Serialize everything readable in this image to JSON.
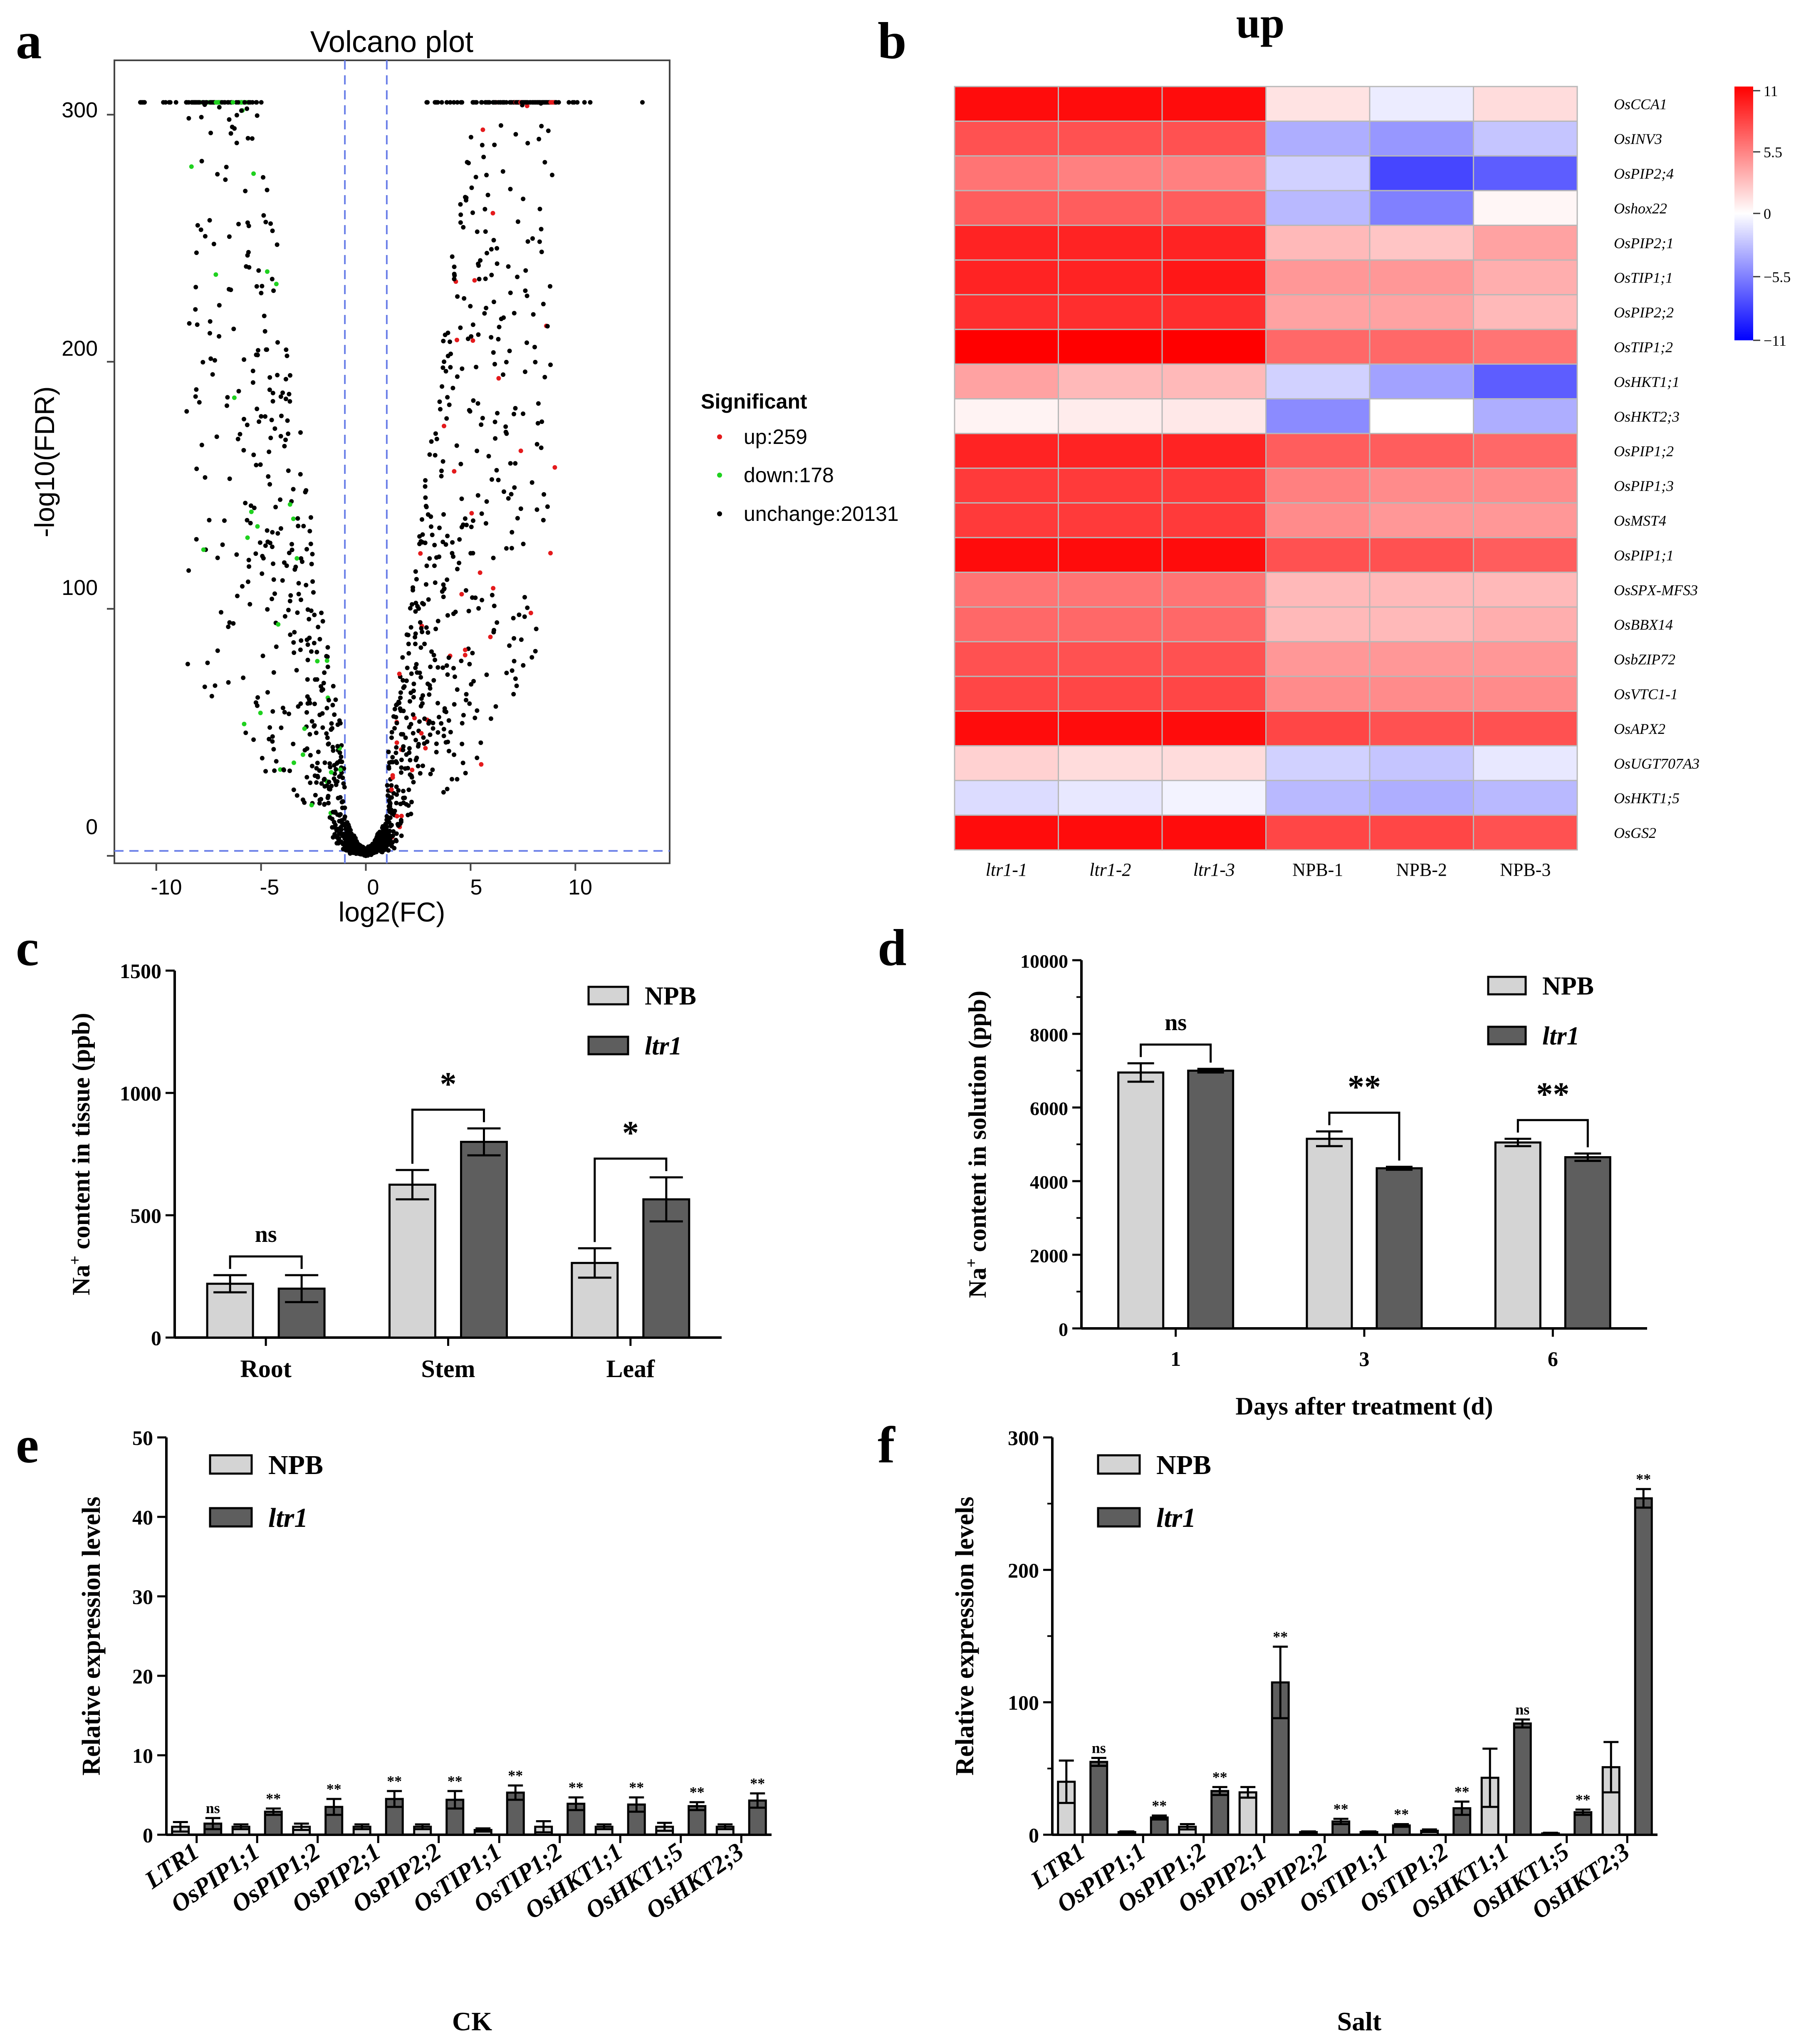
{
  "chart_data": [
    {
      "panel": "a",
      "type": "scatter",
      "title": "Volcano plot",
      "xlabel": "log2(FC)",
      "ylabel": "-log10(FDR)",
      "xlim": [
        -12,
        14.5
      ],
      "ylim": [
        -3,
        322
      ],
      "xticks": [
        "-10",
        "-5",
        "0",
        "5",
        "10"
      ],
      "yticks": [
        "0",
        "100",
        "200",
        "300"
      ],
      "fc_threshold": 1,
      "fdr_line": 2,
      "legend_title": "Significant",
      "legend": [
        {
          "label": "up:259",
          "color": "#e41a1c"
        },
        {
          "label": "down:178",
          "color": "#1fd11f"
        },
        {
          "label": "unchange:20131",
          "color": "#000000"
        }
      ],
      "counts": {
        "up": 259,
        "down": 178,
        "unchange": 20131
      },
      "max_y": 305
    },
    {
      "panel": "b",
      "type": "heatmap",
      "title": "up",
      "columns": [
        "ltr1-1",
        "ltr1-2",
        "ltr1-3",
        "NPB-1",
        "NPB-2",
        "NPB-3"
      ],
      "rows": [
        "OsCCA1",
        "OsINV3",
        "OsPIP2;4",
        "Oshox22",
        "OsPIP2;1",
        "OsTIP1;1",
        "OsPIP2;2",
        "OsTIP1;2",
        "OsHKT1;1",
        "OsHKT2;3",
        "OsPIP1;2",
        "OsPIP1;3",
        "OsMST4",
        "OsPIP1;1",
        "OsSPX-MFS3",
        "OsBBX14",
        "OsbZIP72",
        "OsVTC1-1",
        "OsAPX2",
        "OsUGT707A3",
        "OsHKT1;5",
        "OsGS2"
      ],
      "values": [
        [
          10.5,
          10.5,
          10.5,
          1.2,
          -0.8,
          1.5
        ],
        [
          7.5,
          7.5,
          7.5,
          -3.5,
          -4.5,
          -2.5
        ],
        [
          6,
          5.5,
          5.5,
          -2,
          -8,
          -7
        ],
        [
          7,
          7,
          7,
          -3,
          -5.5,
          0.4
        ],
        [
          9.5,
          9.5,
          9.5,
          3,
          2.5,
          4
        ],
        [
          9.5,
          9.5,
          10,
          4.5,
          4.5,
          3.5
        ],
        [
          9,
          9,
          9,
          4,
          4,
          3
        ],
        [
          11,
          11,
          11,
          6.5,
          6.5,
          6
        ],
        [
          4,
          3,
          3,
          -2,
          -4,
          -7
        ],
        [
          0.5,
          0.8,
          1,
          -5,
          0,
          -3.5
        ],
        [
          9.5,
          9.5,
          9.5,
          7,
          7,
          6.5
        ],
        [
          8.5,
          8.5,
          8.5,
          5.5,
          5,
          5
        ],
        [
          8.5,
          8.5,
          8.5,
          5,
          4.5,
          4.5
        ],
        [
          10.5,
          10.5,
          10.5,
          7.5,
          7.5,
          7
        ],
        [
          6,
          6,
          6,
          3,
          3,
          3
        ],
        [
          6.5,
          6.5,
          6.5,
          3,
          3,
          3.5
        ],
        [
          7.5,
          7.5,
          7.5,
          4.5,
          4.5,
          4.5
        ],
        [
          8,
          8,
          8,
          5,
          5,
          5
        ],
        [
          10.5,
          10.5,
          10.5,
          8,
          7.5,
          7.5
        ],
        [
          2,
          1.5,
          1.5,
          -2,
          -2.5,
          -1
        ],
        [
          -1.5,
          -1,
          -0.5,
          -3,
          -3.5,
          -3
        ],
        [
          10.5,
          10.5,
          10.5,
          8,
          8,
          7.5
        ]
      ],
      "colorbar": {
        "range": [
          -11,
          11
        ],
        "ticks": [
          "11",
          "5.5",
          "0",
          "−5.5",
          "−11"
        ],
        "colors": [
          "#0000ff",
          "#ffffff",
          "#ff0000"
        ]
      }
    },
    {
      "panel": "c",
      "type": "bar",
      "ylabel_pre": "Na",
      "ylabel_sup": "+",
      "ylabel_post": " content in tissue (ppb)",
      "categories": [
        "Root",
        "Stem",
        "Leaf"
      ],
      "ylim": [
        0,
        1500
      ],
      "yticks": [
        "0",
        "500",
        "1000",
        "1500"
      ],
      "series": [
        {
          "name": "NPB",
          "color": "#d4d4d4",
          "values": [
            220,
            625,
            305
          ],
          "errors": [
            35,
            60,
            60
          ]
        },
        {
          "name": "ltr1",
          "color": "#5e5e5e",
          "values": [
            200,
            800,
            565
          ],
          "errors": [
            55,
            55,
            90
          ]
        }
      ],
      "significance": [
        "ns",
        "*",
        "*"
      ]
    },
    {
      "panel": "d",
      "type": "bar",
      "ylabel_pre": "Na",
      "ylabel_sup": "+",
      "ylabel_post": " content in solution (ppb)",
      "xlabel": "Days after treatment (d)",
      "categories": [
        "1",
        "3",
        "6"
      ],
      "ylim": [
        0,
        10000
      ],
      "yticks": [
        "0",
        "2000",
        "4000",
        "6000",
        "8000",
        "10000"
      ],
      "series": [
        {
          "name": "NPB",
          "color": "#d4d4d4",
          "values": [
            6950,
            5150,
            5050
          ],
          "errors": [
            250,
            200,
            100
          ]
        },
        {
          "name": "ltr1",
          "color": "#5e5e5e",
          "values": [
            7000,
            4350,
            4650
          ],
          "errors": [
            50,
            40,
            100
          ]
        }
      ],
      "significance": [
        "ns",
        "**",
        "**"
      ]
    },
    {
      "panel": "e",
      "type": "bar",
      "ylabel": "Relative expression levels",
      "xlabel": "CK",
      "categories": [
        "LTR1",
        "OsPIP1;1",
        "OsPIP1;2",
        "OsPIP2;1",
        "OsPIP2;2",
        "OsTIP1;1",
        "OsTIP1;2",
        "OsHKT1;1",
        "OsHKT1;5",
        "OsHKT2;3"
      ],
      "ylim": [
        0,
        50
      ],
      "yticks": [
        "0",
        "10",
        "20",
        "30",
        "40",
        "50"
      ],
      "series": [
        {
          "name": "NPB",
          "color": "#d4d4d4",
          "values": [
            1,
            1,
            1,
            1,
            1,
            0.6,
            1,
            1,
            1,
            1
          ],
          "errors": [
            0.6,
            0.3,
            0.4,
            0.3,
            0.3,
            0.2,
            0.7,
            0.3,
            0.5,
            0.3
          ]
        },
        {
          "name": "ltr1",
          "color": "#5e5e5e",
          "values": [
            1.4,
            2.9,
            3.5,
            4.5,
            4.4,
            5.3,
            3.9,
            3.8,
            3.6,
            4.3
          ],
          "errors": [
            0.7,
            0.4,
            1.0,
            1.0,
            1.1,
            0.9,
            0.8,
            0.9,
            0.5,
            0.9
          ]
        }
      ],
      "significance": [
        "ns",
        "**",
        "**",
        "**",
        "**",
        "**",
        "**",
        "**",
        "**",
        "**"
      ]
    },
    {
      "panel": "f",
      "type": "bar",
      "ylabel": "Relative expression levels",
      "xlabel": "Salt",
      "categories": [
        "LTR1",
        "OsPIP1;1",
        "OsPIP1;2",
        "OsPIP2;1",
        "OsPIP2;2",
        "OsTIP1;1",
        "OsTIP1;2",
        "OsHKT1;1",
        "OsHKT1;5",
        "OsHKT2;3"
      ],
      "ylim": [
        0,
        300
      ],
      "yticks": [
        "0",
        "100",
        "200",
        "300"
      ],
      "series": [
        {
          "name": "NPB",
          "color": "#d4d4d4",
          "values": [
            40,
            2,
            6,
            32,
            2,
            2,
            3,
            43,
            1,
            51
          ],
          "errors": [
            16,
            0.5,
            2,
            4,
            0.5,
            0.5,
            1,
            22,
            0.5,
            19
          ]
        },
        {
          "name": "ltr1",
          "color": "#5e5e5e",
          "values": [
            55,
            13,
            33,
            115,
            10,
            7,
            20,
            84,
            17,
            254
          ],
          "errors": [
            3,
            1.5,
            3,
            27,
            2,
            1,
            5,
            3,
            2,
            7
          ]
        }
      ],
      "significance": [
        "ns",
        "**",
        "**",
        "**",
        "**",
        "**",
        "**",
        "ns",
        "**",
        "**"
      ]
    }
  ],
  "panel_letters": [
    "a",
    "b",
    "c",
    "d",
    "e",
    "f"
  ]
}
